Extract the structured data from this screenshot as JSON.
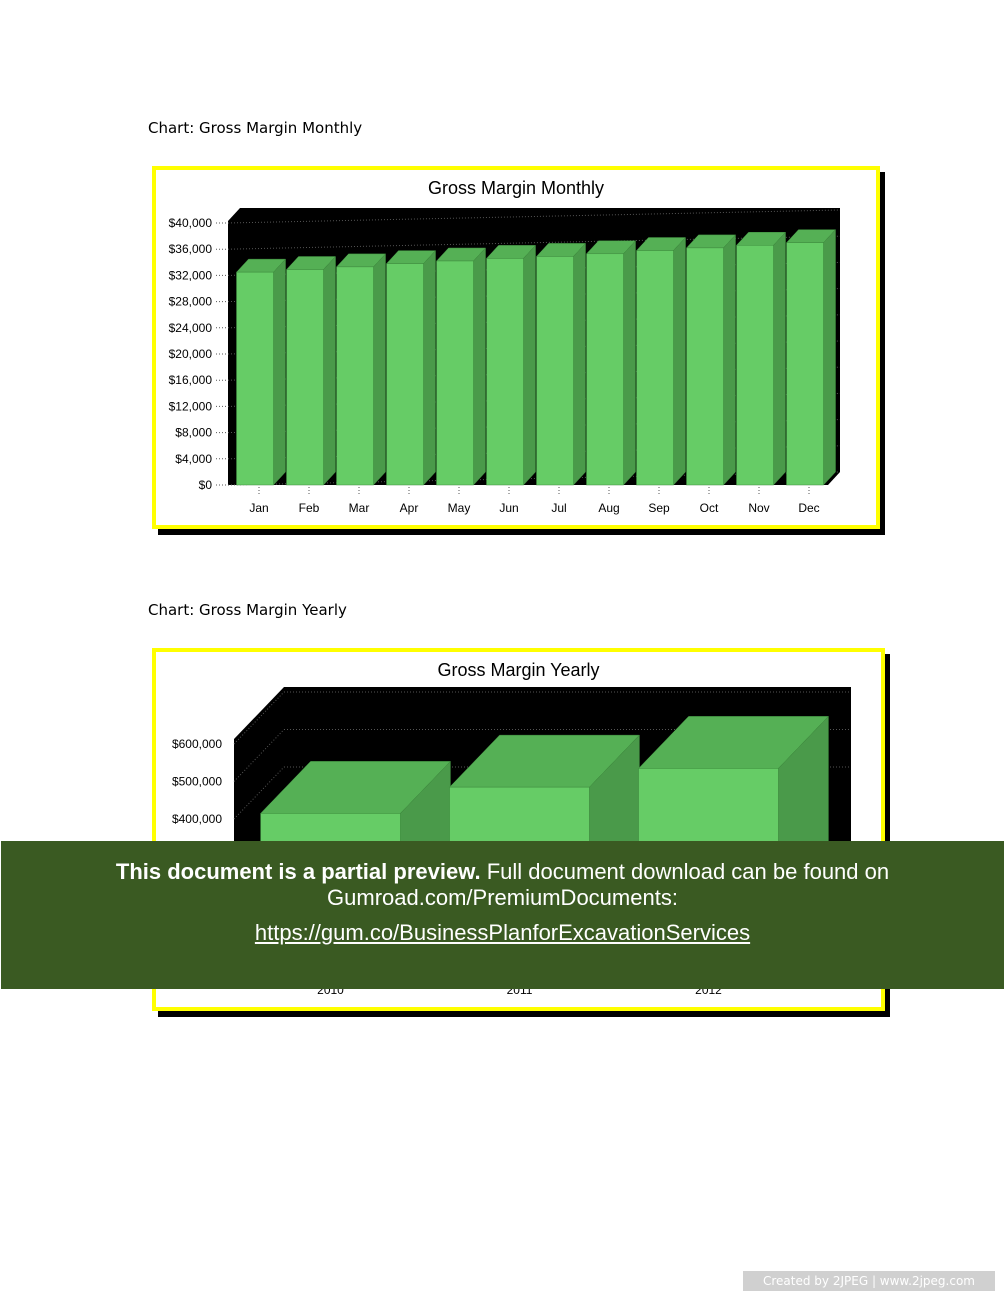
{
  "captions": {
    "monthly": "Chart: Gross Margin Monthly",
    "yearly": "Chart: Gross Margin Yearly"
  },
  "colors": {
    "frame_border": "#ffff00",
    "plot_bg": "#000000",
    "bar_front": "#66cc66",
    "bar_top": "#55b055",
    "bar_side": "#4a9a4a",
    "overlay_bg": "#3a5a22"
  },
  "chart_data": [
    {
      "type": "bar",
      "title": "Gross Margin Monthly",
      "categories": [
        "Jan",
        "Feb",
        "Mar",
        "Apr",
        "May",
        "Jun",
        "Jul",
        "Aug",
        "Sep",
        "Oct",
        "Nov",
        "Dec"
      ],
      "values": [
        32500,
        32900,
        33300,
        33800,
        34200,
        34600,
        34900,
        35300,
        35800,
        36200,
        36600,
        37000
      ],
      "ylim": [
        0,
        40000
      ],
      "yticks": [
        "$0",
        "$4,000",
        "$8,000",
        "$12,000",
        "$16,000",
        "$20,000",
        "$24,000",
        "$28,000",
        "$32,000",
        "$36,000",
        "$40,000"
      ],
      "xlabel": "",
      "ylabel": "",
      "grid": true,
      "legend": "none",
      "style": "3d"
    },
    {
      "type": "bar",
      "title": "Gross Margin Yearly",
      "categories": [
        "2010",
        "2011",
        "2012"
      ],
      "values": [
        415000,
        485000,
        535000
      ],
      "ylim": [
        0,
        600000
      ],
      "yticks": [
        "$400,000",
        "$500,000",
        "$600,000"
      ],
      "xlabel": "",
      "ylabel": "",
      "grid": true,
      "legend": "none",
      "style": "3d"
    }
  ],
  "overlay": {
    "bold": "This document is a partial preview.",
    "text": " Full document download can be found on",
    "line2": "Gumroad.com/PremiumDocuments:",
    "link": "https://gum.co/BusinessPlanforExcavationServices"
  },
  "watermark": "Created by 2JPEG | www.2jpeg.com"
}
